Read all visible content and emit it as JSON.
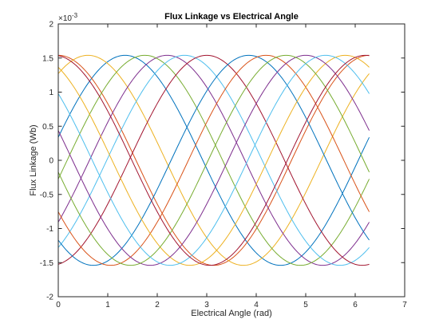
{
  "chart_data": {
    "type": "line",
    "title": "Flux Linkage vs Electrical Angle",
    "xlabel": "Electrical Angle (rad)",
    "ylabel": "Flux Linkage (Wb)",
    "y_multiplier_label": "×10",
    "y_multiplier_exponent": "-3",
    "xlim": [
      0,
      7
    ],
    "ylim": [
      -2,
      2
    ],
    "x_ticks": [
      "0",
      "1",
      "2",
      "3",
      "4",
      "5",
      "6",
      "7"
    ],
    "y_ticks": [
      "-2",
      "-1.5",
      "-1",
      "-0.5",
      "0",
      "0.5",
      "1",
      "1.5",
      "2"
    ],
    "x_range": [
      0,
      6.2832
    ],
    "grid": false,
    "legend": "none",
    "series_function": "y = 1.54e-3 * cos(x - phase)",
    "series": [
      {
        "color": "#0072BD",
        "amplitude": 0.00154,
        "phase": 1.35
      },
      {
        "color": "#D95319",
        "amplitude": 0.00154,
        "phase": 0.0
      },
      {
        "color": "#EDB120",
        "amplitude": 0.00154,
        "phase": 0.6
      },
      {
        "color": "#7E2F8E",
        "amplitude": 0.00154,
        "phase": 2.2
      },
      {
        "color": "#77AC30",
        "amplitude": 0.00154,
        "phase": 1.75
      },
      {
        "color": "#4DBEEE",
        "amplitude": 0.00154,
        "phase": 2.55
      },
      {
        "color": "#A2142F",
        "amplitude": 0.00154,
        "phase": 3.0
      },
      {
        "color": "#0072BD",
        "amplitude": 0.00154,
        "phase": 3.85
      },
      {
        "color": "#D95319",
        "amplitude": 0.00154,
        "phase": 4.2
      },
      {
        "color": "#EDB120",
        "amplitude": 0.00154,
        "phase": 5.8
      },
      {
        "color": "#7E2F8E",
        "amplitude": 0.00154,
        "phase": 5.0
      },
      {
        "color": "#77AC30",
        "amplitude": 0.00154,
        "phase": 4.6
      },
      {
        "color": "#4DBEEE",
        "amplitude": 0.00154,
        "phase": 5.4
      },
      {
        "color": "#A2142F",
        "amplitude": 0.00154,
        "phase": 6.2
      }
    ]
  }
}
